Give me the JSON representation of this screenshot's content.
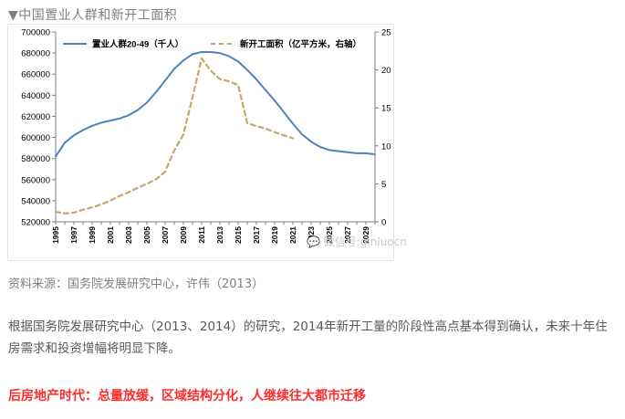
{
  "caption": "▼中国置业人群和新开工面积",
  "source_note": "资料来源：国务院发展研究中心，许伟（2013）",
  "paragraph": "根据国务院发展研究中心（2013、2014）的研究，2014年新开工量的阶段性高点基本得到确认，未来十年住房需求和投资增幅将明显下降。",
  "headline": "后房地产时代：总量放缓，区域结构分化，人继续往大都市迁移",
  "watermark": "💬 微信号:ginluocn",
  "chart_data": {
    "type": "line",
    "xlim": [
      1995,
      2030
    ],
    "x_tick_labels": [
      "1995",
      "1997",
      "1999",
      "2001",
      "2003",
      "2005",
      "2007",
      "2009",
      "2011",
      "2013",
      "2015",
      "2017",
      "2019",
      "2021",
      "2023",
      "2025",
      "2027",
      "2029"
    ],
    "y_left": {
      "ylim": [
        520000,
        700000
      ],
      "ticks": [
        "520000",
        "540000",
        "560000",
        "580000",
        "600000",
        "620000",
        "640000",
        "660000",
        "680000",
        "700000"
      ]
    },
    "y_right": {
      "ylim": [
        0,
        25
      ],
      "ticks": [
        "0",
        "5",
        "10",
        "15",
        "20",
        "25"
      ]
    },
    "series": [
      {
        "name": "置业人群20-49（千人）",
        "axis": "left",
        "style": "solid",
        "color": "#4f81bd",
        "x": [
          1995,
          1996,
          1997,
          1998,
          1999,
          2000,
          2001,
          2002,
          2003,
          2004,
          2005,
          2006,
          2007,
          2008,
          2009,
          2010,
          2011,
          2012,
          2013,
          2014,
          2015,
          2016,
          2017,
          2018,
          2019,
          2020,
          2021,
          2022,
          2023,
          2024,
          2025,
          2026,
          2027,
          2028,
          2029,
          2030
        ],
        "y": [
          582000,
          595000,
          602000,
          607000,
          611000,
          614000,
          616000,
          618000,
          621000,
          626000,
          633000,
          643000,
          654000,
          665000,
          673000,
          679000,
          681000,
          681000,
          680000,
          677000,
          672000,
          664000,
          655000,
          645000,
          635000,
          624000,
          613000,
          603000,
          596000,
          591000,
          588000,
          587000,
          586000,
          585000,
          585000,
          584000
        ]
      },
      {
        "name": "新开工面积（亿平方米，右轴）",
        "axis": "right",
        "style": "dashed",
        "color": "#c4a76f",
        "x": [
          1995,
          1996,
          1997,
          1998,
          1999,
          2000,
          2001,
          2002,
          2003,
          2004,
          2005,
          2006,
          2007,
          2008,
          2009,
          2010,
          2011,
          2012,
          2013,
          2014,
          2015,
          2016,
          2017,
          2018,
          2019,
          2020,
          2021
        ],
        "y": [
          1.3,
          1.1,
          1.2,
          1.6,
          1.9,
          2.3,
          2.8,
          3.4,
          3.9,
          4.5,
          5.0,
          5.6,
          6.6,
          9.4,
          11.5,
          16.4,
          21.5,
          19.9,
          18.8,
          18.5,
          18.0,
          13.0,
          12.6,
          12.3,
          11.8,
          11.4,
          11.0
        ]
      }
    ]
  }
}
